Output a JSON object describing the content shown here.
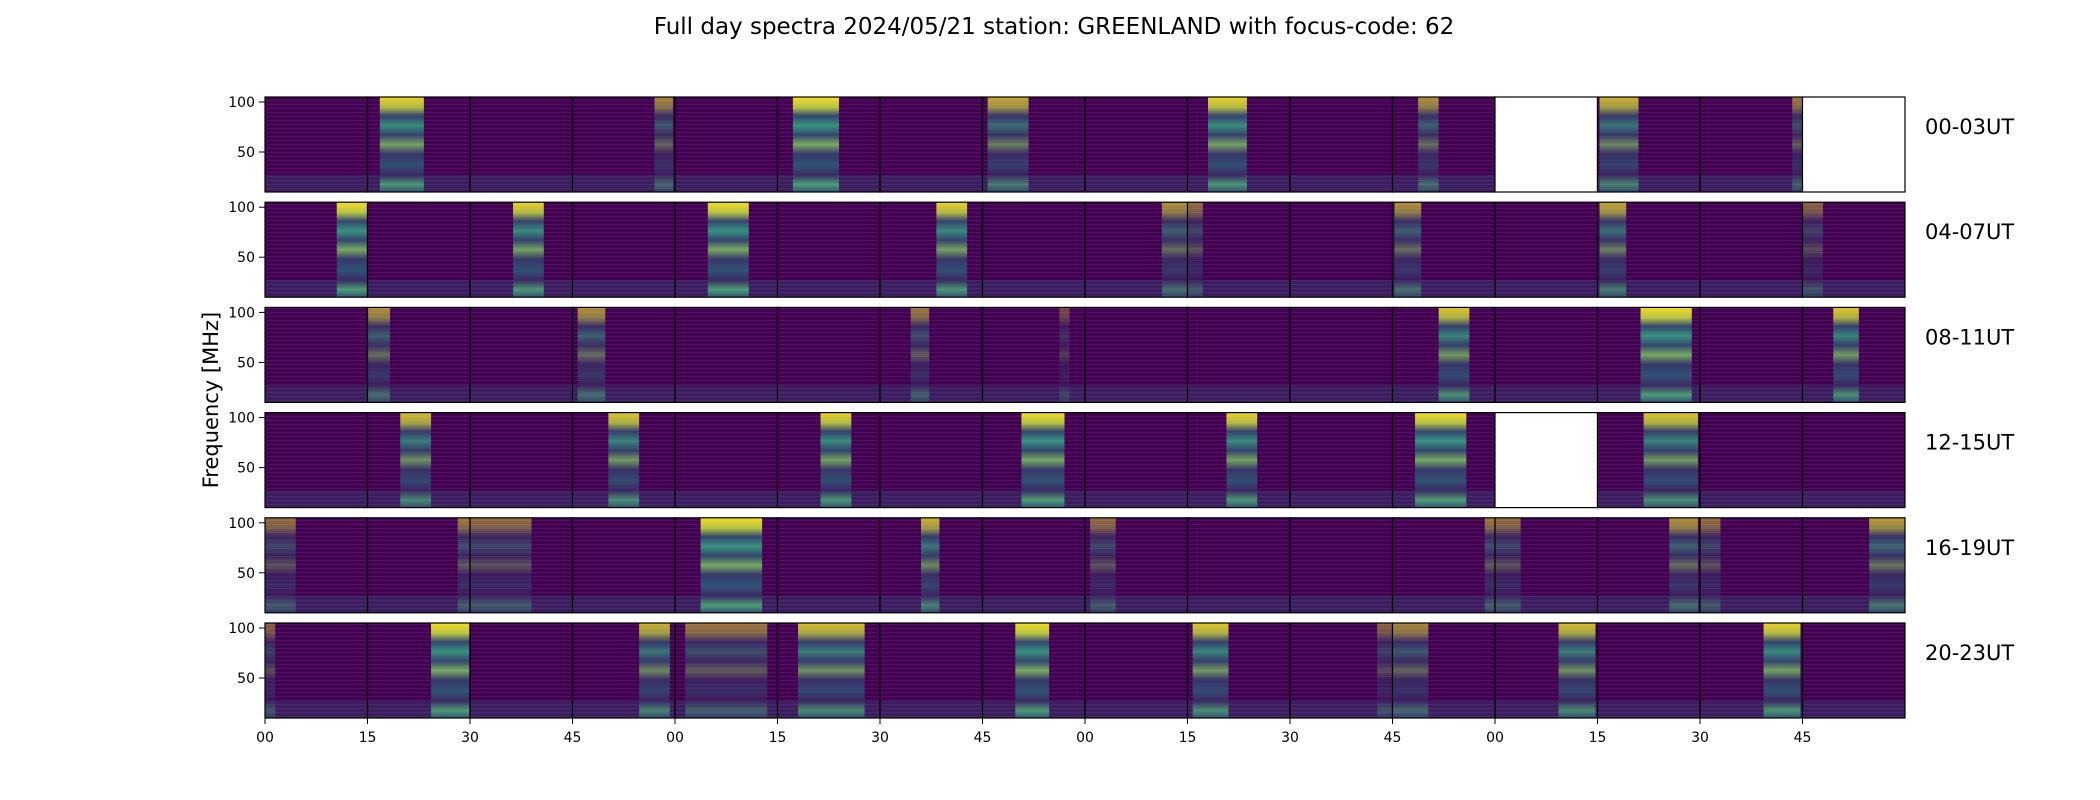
{
  "chart_data": {
    "type": "heatmap",
    "title": "Full day spectra 2024/05/21 station: GREENLAND with focus-code: 62",
    "ylabel": "Frequency [MHz]",
    "y_ticks": [
      50,
      100
    ],
    "ylim": [
      10,
      105
    ],
    "x_tick_labels": [
      "00",
      "15",
      "30",
      "45",
      "00",
      "15",
      "30",
      "45",
      "00",
      "15",
      "30",
      "45",
      "00",
      "15",
      "30",
      "45"
    ],
    "colormap": "viridis",
    "colors": {
      "low": "#440154",
      "mid": "#21918c",
      "high": "#fde725"
    },
    "rows": [
      {
        "label": "00-03UT",
        "panels": [
          {
            "missing": false,
            "bands": []
          },
          {
            "missing": false,
            "bands": [
              [
                0.12,
                0.55,
                0.9
              ]
            ]
          },
          {
            "missing": false,
            "bands": []
          },
          {
            "missing": false,
            "bands": [
              [
                0.8,
                0.98,
                0.55
              ]
            ]
          },
          {
            "missing": false,
            "bands": []
          },
          {
            "missing": false,
            "bands": [
              [
                0.15,
                0.6,
                0.95
              ]
            ]
          },
          {
            "missing": false,
            "bands": []
          },
          {
            "missing": false,
            "bands": [
              [
                0.05,
                0.45,
                0.7
              ]
            ]
          },
          {
            "missing": false,
            "bands": []
          },
          {
            "missing": false,
            "bands": [
              [
                0.2,
                0.58,
                0.9
              ]
            ]
          },
          {
            "missing": false,
            "bands": []
          },
          {
            "missing": false,
            "bands": [
              [
                0.25,
                0.45,
                0.6
              ]
            ]
          },
          {
            "missing": true,
            "bands": []
          },
          {
            "missing": false,
            "bands": [
              [
                0.02,
                0.4,
                0.75
              ]
            ]
          },
          {
            "missing": false,
            "bands": [
              [
                0.9,
                1.0,
                0.5
              ]
            ]
          },
          {
            "missing": true,
            "bands": []
          }
        ]
      },
      {
        "label": "04-07UT",
        "panels": [
          {
            "missing": false,
            "bands": [
              [
                0.7,
                1.0,
                0.95
              ]
            ]
          },
          {
            "missing": false,
            "bands": []
          },
          {
            "missing": false,
            "bands": [
              [
                0.42,
                0.72,
                0.9
              ]
            ]
          },
          {
            "missing": false,
            "bands": []
          },
          {
            "missing": false,
            "bands": [
              [
                0.32,
                0.72,
                0.95
              ]
            ]
          },
          {
            "missing": false,
            "bands": []
          },
          {
            "missing": false,
            "bands": [
              [
                0.55,
                0.85,
                0.9
              ]
            ]
          },
          {
            "missing": false,
            "bands": []
          },
          {
            "missing": false,
            "bands": [
              [
                0.75,
                1.0,
                0.6
              ]
            ]
          },
          {
            "missing": false,
            "bands": [
              [
                0.0,
                0.15,
                0.45
              ]
            ]
          },
          {
            "missing": false,
            "bands": []
          },
          {
            "missing": false,
            "bands": [
              [
                0.02,
                0.28,
                0.6
              ]
            ]
          },
          {
            "missing": false,
            "bands": []
          },
          {
            "missing": false,
            "bands": [
              [
                0.02,
                0.28,
                0.7
              ]
            ]
          },
          {
            "missing": false,
            "bands": []
          },
          {
            "missing": false,
            "bands": [
              [
                0.0,
                0.2,
                0.4
              ]
            ]
          }
        ]
      },
      {
        "label": "08-11UT",
        "panels": [
          {
            "missing": false,
            "bands": []
          },
          {
            "missing": false,
            "bands": [
              [
                0.0,
                0.22,
                0.6
              ]
            ]
          },
          {
            "missing": false,
            "bands": []
          },
          {
            "missing": false,
            "bands": [
              [
                0.05,
                0.32,
                0.6
              ]
            ]
          },
          {
            "missing": false,
            "bands": []
          },
          {
            "missing": false,
            "bands": []
          },
          {
            "missing": false,
            "bands": [
              [
                0.3,
                0.48,
                0.5
              ]
            ]
          },
          {
            "missing": false,
            "bands": [
              [
                0.75,
                0.85,
                0.3
              ]
            ]
          },
          {
            "missing": false,
            "bands": []
          },
          {
            "missing": false,
            "bands": []
          },
          {
            "missing": false,
            "bands": []
          },
          {
            "missing": false,
            "bands": [
              [
                0.45,
                0.75,
                0.85
              ]
            ]
          },
          {
            "missing": false,
            "bands": []
          },
          {
            "missing": false,
            "bands": [
              [
                0.42,
                0.92,
                0.95
              ]
            ]
          },
          {
            "missing": false,
            "bands": []
          },
          {
            "missing": false,
            "bands": [
              [
                0.3,
                0.55,
                0.85
              ]
            ]
          }
        ]
      },
      {
        "label": "12-15UT",
        "panels": [
          {
            "missing": false,
            "bands": []
          },
          {
            "missing": false,
            "bands": [
              [
                0.32,
                0.62,
                0.8
              ]
            ]
          },
          {
            "missing": false,
            "bands": []
          },
          {
            "missing": false,
            "bands": [
              [
                0.35,
                0.65,
                0.85
              ]
            ]
          },
          {
            "missing": false,
            "bands": []
          },
          {
            "missing": false,
            "bands": [
              [
                0.42,
                0.72,
                0.9
              ]
            ]
          },
          {
            "missing": false,
            "bands": []
          },
          {
            "missing": false,
            "bands": [
              [
                0.38,
                0.8,
                0.95
              ]
            ]
          },
          {
            "missing": false,
            "bands": []
          },
          {
            "missing": false,
            "bands": [
              [
                0.38,
                0.68,
                0.9
              ]
            ]
          },
          {
            "missing": false,
            "bands": []
          },
          {
            "missing": false,
            "bands": [
              [
                0.22,
                0.72,
                0.95
              ]
            ]
          },
          {
            "missing": true,
            "bands": []
          },
          {
            "missing": false,
            "bands": [
              [
                0.45,
                0.98,
                0.85
              ]
            ]
          },
          {
            "missing": false,
            "bands": []
          },
          {
            "missing": false,
            "bands": []
          }
        ]
      },
      {
        "label": "16-19UT",
        "panels": [
          {
            "missing": false,
            "bands": [
              [
                0.0,
                0.3,
                0.45
              ]
            ]
          },
          {
            "missing": false,
            "bands": [
              [
                0.88,
                1.0,
                0.5
              ]
            ]
          },
          {
            "missing": false,
            "bands": [
              [
                0.0,
                0.6,
                0.45
              ]
            ]
          },
          {
            "missing": false,
            "bands": []
          },
          {
            "missing": false,
            "bands": [
              [
                0.25,
                0.85,
                0.95
              ]
            ]
          },
          {
            "missing": false,
            "bands": []
          },
          {
            "missing": false,
            "bands": [
              [
                0.4,
                0.58,
                0.75
              ]
            ]
          },
          {
            "missing": false,
            "bands": []
          },
          {
            "missing": false,
            "bands": [
              [
                0.05,
                0.3,
                0.45
              ]
            ]
          },
          {
            "missing": false,
            "bands": []
          },
          {
            "missing": false,
            "bands": []
          },
          {
            "missing": false,
            "bands": [
              [
                0.9,
                1.0,
                0.5
              ]
            ]
          },
          {
            "missing": false,
            "bands": [
              [
                0.0,
                0.25,
                0.45
              ]
            ]
          },
          {
            "missing": false,
            "bands": [
              [
                0.7,
                0.98,
                0.6
              ]
            ]
          },
          {
            "missing": false,
            "bands": [
              [
                0.0,
                0.2,
                0.45
              ]
            ]
          },
          {
            "missing": false,
            "bands": [
              [
                0.65,
                1.0,
                0.65
              ]
            ]
          }
        ]
      },
      {
        "label": "20-23UT",
        "panels": [
          {
            "missing": false,
            "bands": [
              [
                0.0,
                0.1,
                0.4
              ]
            ]
          },
          {
            "missing": false,
            "bands": [
              [
                0.62,
                1.0,
                0.95
              ]
            ]
          },
          {
            "missing": false,
            "bands": []
          },
          {
            "missing": false,
            "bands": [
              [
                0.65,
                0.95,
                0.75
              ]
            ]
          },
          {
            "missing": false,
            "bands": [
              [
                0.1,
                0.9,
                0.5
              ]
            ]
          },
          {
            "missing": false,
            "bands": [
              [
                0.2,
                0.85,
                0.8
              ]
            ]
          },
          {
            "missing": false,
            "bands": []
          },
          {
            "missing": false,
            "bands": [
              [
                0.32,
                0.65,
                0.95
              ]
            ]
          },
          {
            "missing": false,
            "bands": []
          },
          {
            "missing": false,
            "bands": [
              [
                0.05,
                0.4,
                0.85
              ]
            ]
          },
          {
            "missing": false,
            "bands": [
              [
                0.85,
                1.0,
                0.4
              ]
            ]
          },
          {
            "missing": false,
            "bands": [
              [
                0.0,
                0.35,
                0.55
              ]
            ]
          },
          {
            "missing": false,
            "bands": [
              [
                0.62,
                0.98,
                0.8
              ]
            ]
          },
          {
            "missing": false,
            "bands": []
          },
          {
            "missing": false,
            "bands": [
              [
                0.62,
                0.98,
                0.9
              ]
            ]
          },
          {
            "missing": false,
            "bands": []
          }
        ]
      }
    ]
  }
}
